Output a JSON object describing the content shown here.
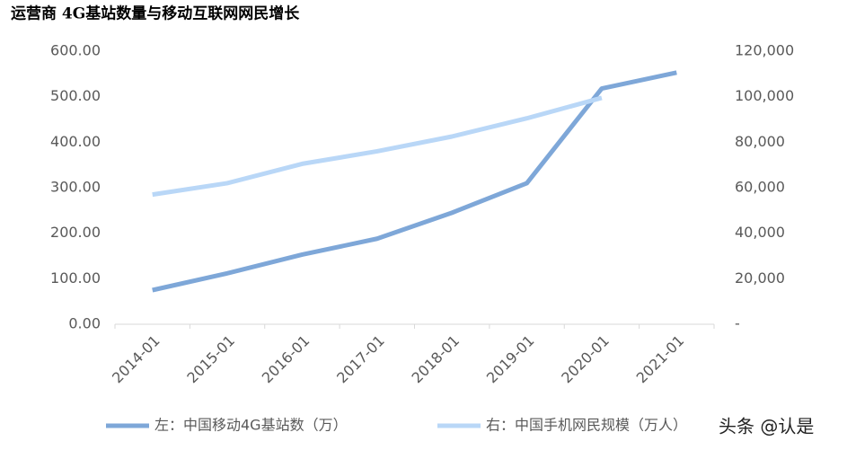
{
  "chart_data": {
    "type": "line",
    "title": "运营商 4G基站数量与移动互联网网民增长",
    "categories": [
      "2014-01",
      "2015-01",
      "2016-01",
      "2017-01",
      "2018-01",
      "2019-01",
      "2020-01",
      "2021-01"
    ],
    "series": [
      {
        "name": "左：中国移动4G基站数（万）",
        "color": "#7ea7d8",
        "values": [
          75,
          112,
          153,
          188,
          245,
          310,
          518,
          553
        ]
      },
      {
        "name": "右：中国手机网民规模（万人）",
        "color": "#b9d7f7",
        "axis": "y2",
        "values": [
          57000,
          62000,
          70500,
          76000,
          82500,
          90500,
          99500,
          null
        ]
      }
    ],
    "ylim": [
      0,
      600
    ],
    "yticks": [
      {
        "value": 0,
        "label": "0.00"
      },
      {
        "value": 100,
        "label": "100.00"
      },
      {
        "value": 200,
        "label": "200.00"
      },
      {
        "value": 300,
        "label": "300.00"
      },
      {
        "value": 400,
        "label": "400.00"
      },
      {
        "value": 500,
        "label": "500.00"
      },
      {
        "value": 600,
        "label": "600.00"
      }
    ],
    "y2lim": [
      0,
      120000
    ],
    "y2ticks": [
      {
        "value": 0,
        "label": "-"
      },
      {
        "value": 20000,
        "label": "20,000"
      },
      {
        "value": 40000,
        "label": "40,000"
      },
      {
        "value": 60000,
        "label": "60,000"
      },
      {
        "value": 80000,
        "label": "80,000"
      },
      {
        "value": 100000,
        "label": "100,000"
      },
      {
        "value": 120000,
        "label": "120,000"
      }
    ],
    "grid": false,
    "legend": "bottom",
    "watermark": "头条 @认是"
  }
}
